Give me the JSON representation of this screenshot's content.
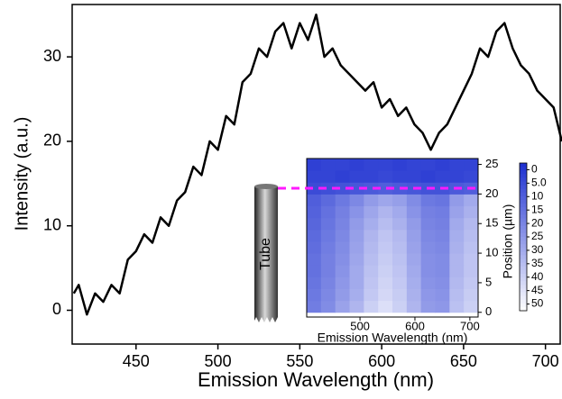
{
  "chart_data": [
    {
      "type": "line",
      "xlabel": "Emission Wavelength (nm)",
      "ylabel": "Intensity (a.u.)",
      "x": [
        412,
        415,
        420,
        425,
        430,
        435,
        440,
        445,
        450,
        455,
        460,
        465,
        470,
        475,
        480,
        485,
        490,
        495,
        500,
        505,
        510,
        515,
        520,
        525,
        530,
        535,
        540,
        545,
        550,
        555,
        560,
        565,
        570,
        575,
        580,
        585,
        590,
        595,
        600,
        605,
        610,
        615,
        620,
        625,
        630,
        635,
        640,
        645,
        650,
        655,
        660,
        665,
        670,
        675,
        680,
        685,
        690,
        695,
        700,
        705,
        710
      ],
      "values": [
        2,
        3,
        -0.5,
        2,
        1,
        3,
        2,
        6,
        7,
        9,
        8,
        11,
        10,
        13,
        14,
        17,
        16,
        20,
        19,
        23,
        22,
        27,
        28,
        31,
        30,
        33,
        34,
        31,
        34,
        32,
        35,
        30,
        31,
        29,
        28,
        27,
        26,
        27,
        24,
        25,
        23,
        24,
        22,
        21,
        19,
        21,
        22,
        24,
        26,
        28,
        31,
        30,
        33,
        34,
        31,
        29,
        28,
        26,
        25,
        24,
        20
      ],
      "color": "#000000",
      "xlim": [
        411,
        709
      ],
      "ylim": [
        -4,
        36.2
      ],
      "xticks": [
        450,
        500,
        550,
        600,
        650,
        700
      ],
      "yticks": [
        0,
        10,
        20,
        30
      ]
    },
    {
      "type": "heatmap",
      "xlabel": "Emission Wavelength (nm)",
      "ylabel": "Position (µm)",
      "annotation": "Tube",
      "x": [
        416,
        442,
        468,
        494,
        520,
        546,
        572,
        598,
        624,
        650,
        676,
        702
      ],
      "y": [
        1,
        3,
        5,
        7,
        9,
        11,
        13,
        15,
        17,
        19,
        21,
        23,
        25
      ],
      "z": [
        [
          18,
          22,
          28,
          33,
          40,
          44,
          40,
          33,
          26,
          25,
          36,
          40
        ],
        [
          17,
          21,
          26,
          31,
          38,
          42,
          39,
          32,
          25,
          24,
          35,
          39
        ],
        [
          16,
          20,
          25,
          30,
          37,
          41,
          38,
          31,
          24,
          23,
          34,
          38
        ],
        [
          15,
          19,
          24,
          30,
          36,
          40,
          37,
          30,
          23,
          22,
          33,
          37
        ],
        [
          15,
          19,
          23,
          29,
          35,
          39,
          36,
          29,
          23,
          22,
          33,
          37
        ],
        [
          14,
          18,
          22,
          28,
          34,
          38,
          35,
          28,
          22,
          21,
          32,
          36
        ],
        [
          13,
          17,
          21,
          27,
          33,
          37,
          34,
          27,
          21,
          20,
          31,
          35
        ],
        [
          12,
          16,
          20,
          26,
          31,
          35,
          32,
          26,
          20,
          19,
          30,
          34
        ],
        [
          11,
          15,
          19,
          24,
          29,
          33,
          30,
          24,
          19,
          18,
          28,
          32
        ],
        [
          10,
          13,
          17,
          21,
          26,
          29,
          27,
          22,
          17,
          16,
          26,
          30
        ],
        [
          5,
          6,
          7,
          8,
          9,
          10,
          9,
          8,
          7,
          7,
          9,
          10
        ],
        [
          3,
          3,
          2,
          3,
          3,
          4,
          3,
          3,
          2,
          3,
          3,
          4
        ],
        [
          2,
          3,
          3,
          2,
          3,
          3,
          2,
          3,
          3,
          2,
          3,
          3
        ]
      ],
      "xlim": [
        403,
        715
      ],
      "ylim": [
        -0.8,
        26
      ],
      "xticks": [
        500,
        600,
        700
      ],
      "yticks": [
        0,
        5,
        10,
        15,
        20,
        25
      ],
      "zlim": [
        -2.5,
        52.5
      ],
      "zticks": [
        0,
        {
          "value": 5,
          "label": "5.0"
        },
        10,
        15,
        20,
        25,
        30,
        35,
        40,
        45,
        50
      ],
      "colormap": [
        "#1c2fd0",
        "#ffffff"
      ]
    }
  ]
}
